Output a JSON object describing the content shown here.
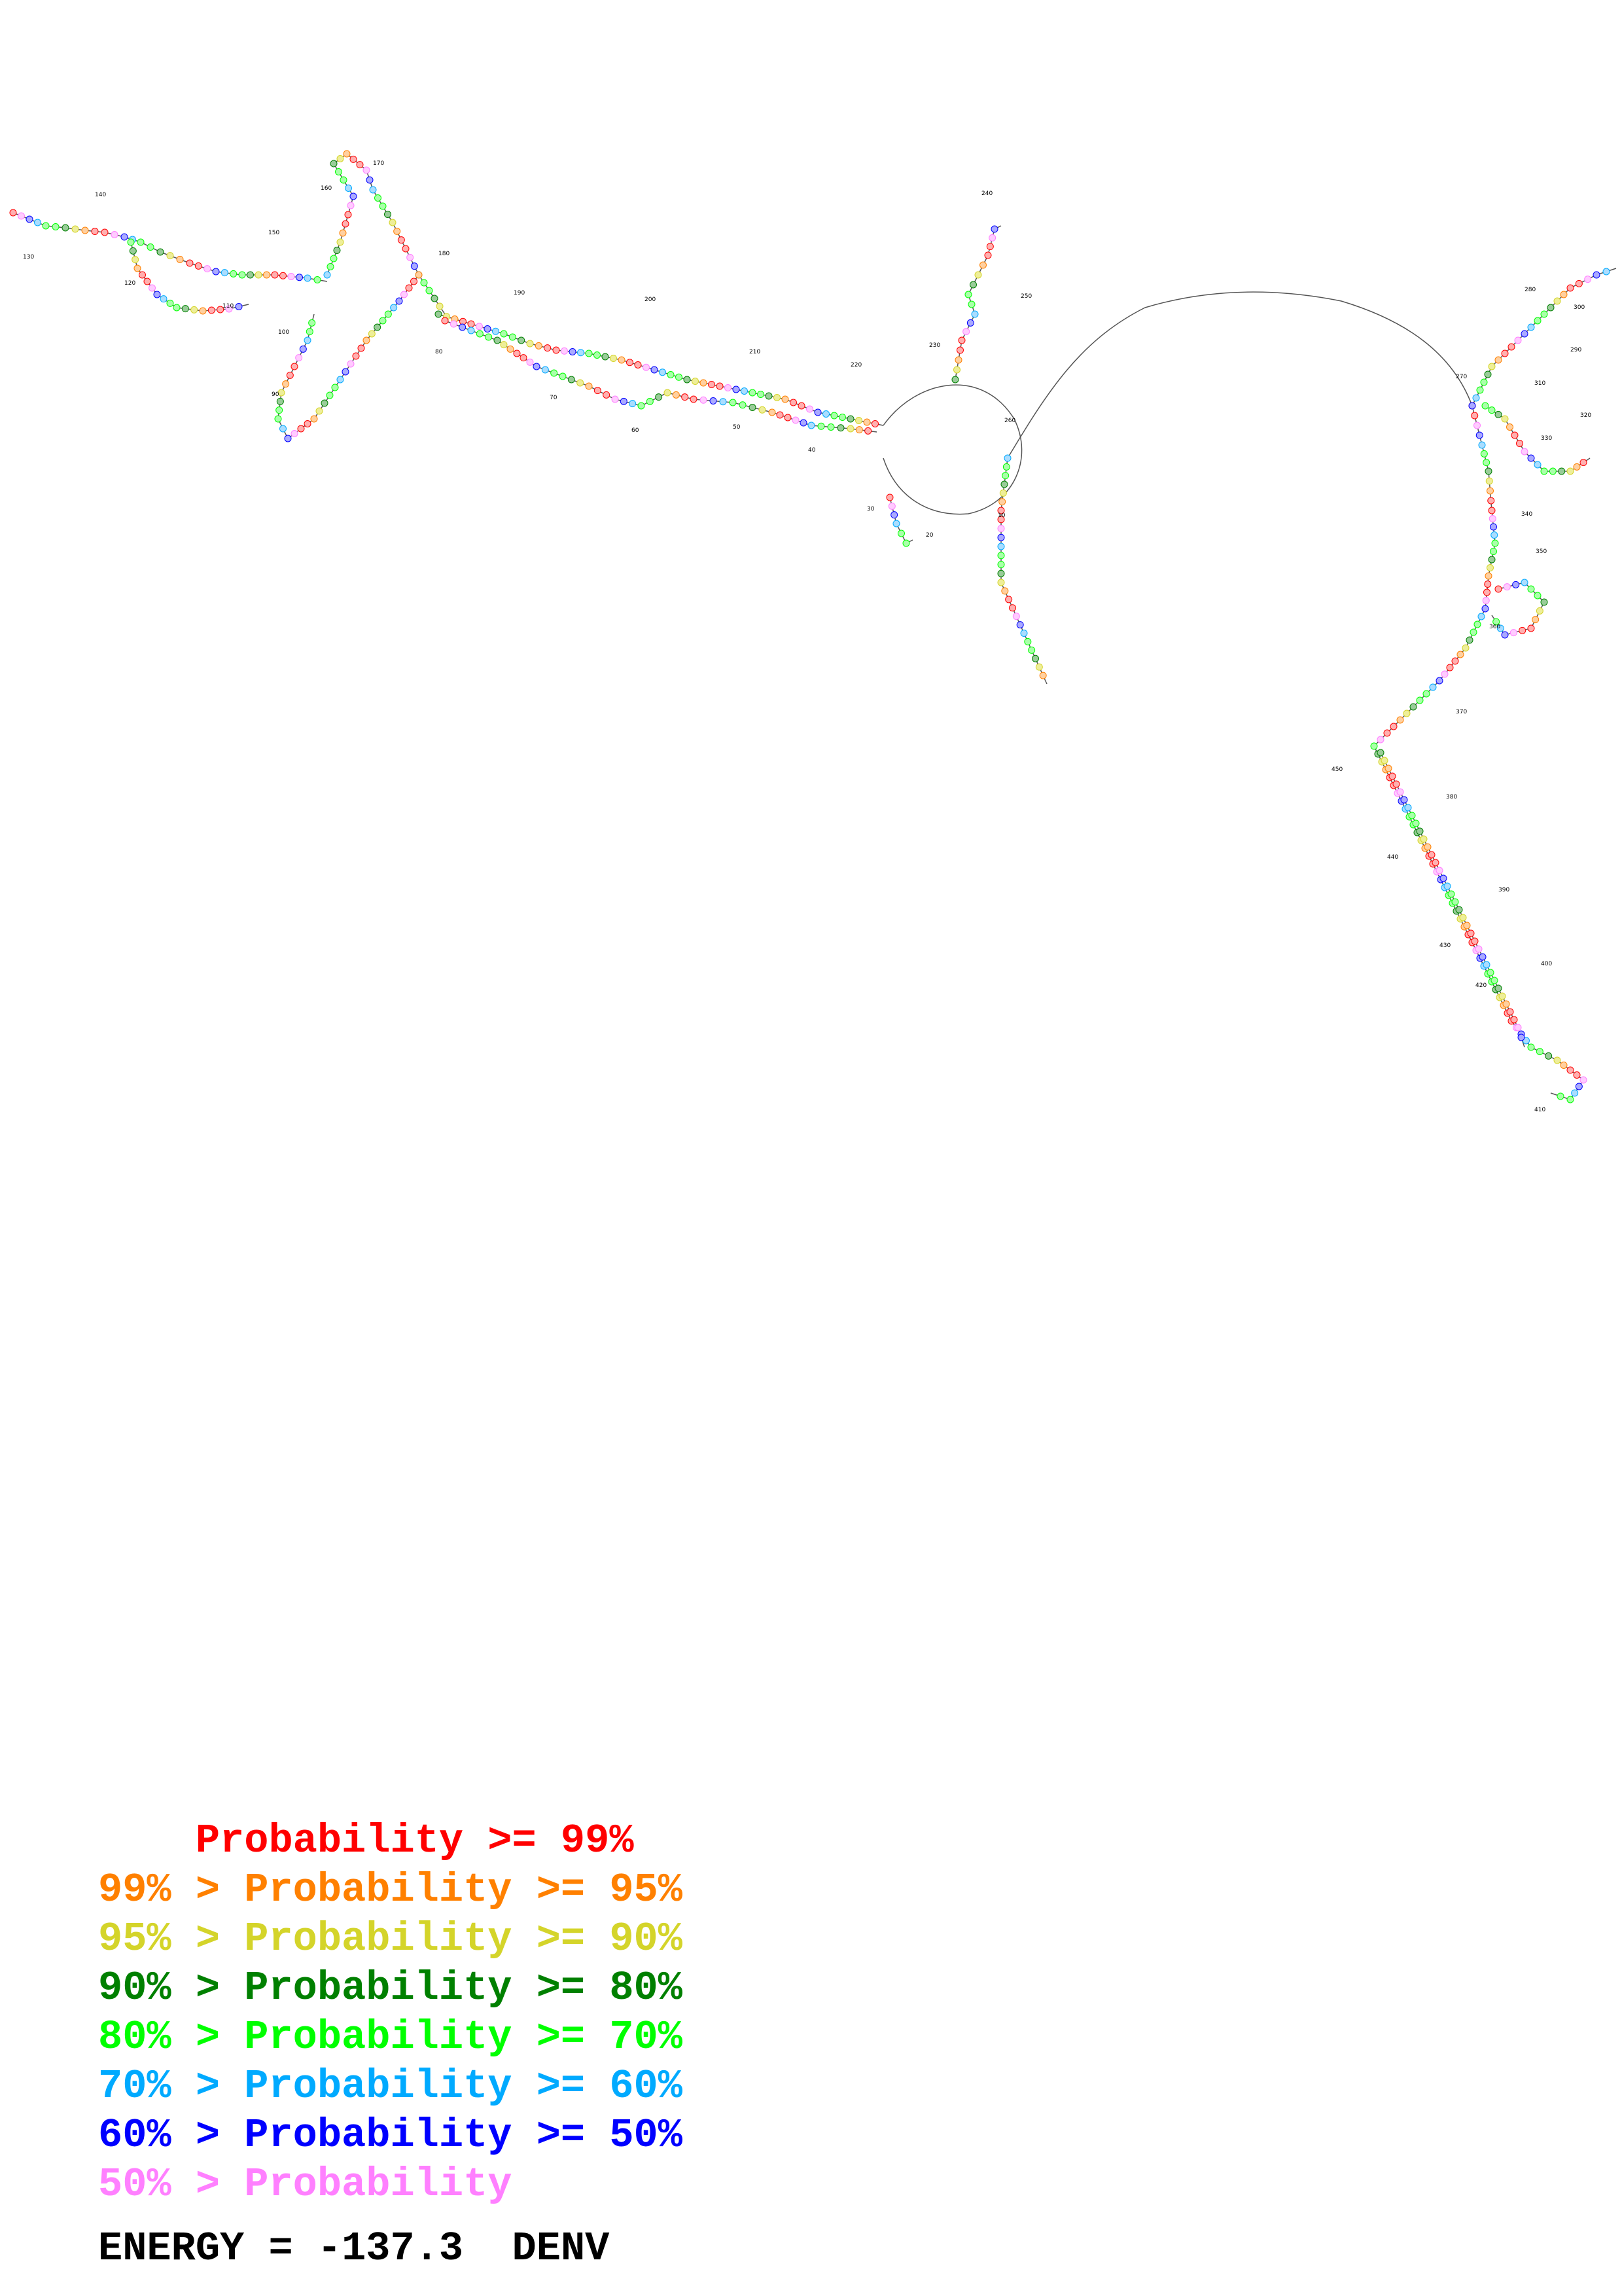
{
  "diagram": {
    "type": "rna-secondary-structure",
    "position_labels": [
      "10",
      "20",
      "30",
      "40",
      "50",
      "60",
      "70",
      "80",
      "90",
      "100",
      "110",
      "120",
      "130",
      "140",
      "150",
      "160",
      "170",
      "180",
      "190",
      "200",
      "210",
      "220",
      "230",
      "240",
      "250",
      "260",
      "270",
      "280",
      "290",
      "300",
      "310",
      "320",
      "330",
      "340",
      "350",
      "360",
      "370",
      "380",
      "390",
      "400",
      "410",
      "420",
      "430",
      "440",
      "450"
    ]
  },
  "legend": {
    "items": [
      {
        "prefix": "    ",
        "text": "Probability >= 99%",
        "color": "#ff0000"
      },
      {
        "prefix": "99% > ",
        "text": "Probability >= 95%",
        "color": "#ff8000"
      },
      {
        "prefix": "95% > ",
        "text": "Probability >= 90%",
        "color": "#d4d42a"
      },
      {
        "prefix": "90% > ",
        "text": "Probability >= 80%",
        "color": "#008000"
      },
      {
        "prefix": "80% > ",
        "text": "Probability >= 70%",
        "color": "#00ff00"
      },
      {
        "prefix": "70% > ",
        "text": "Probability >= 60%",
        "color": "#00aaff"
      },
      {
        "prefix": "60% > ",
        "text": "Probability >= 50%",
        "color": "#0000ff"
      },
      {
        "prefix": "50% > ",
        "text": "Probability",
        "color": "#ff80ff"
      }
    ]
  },
  "energy": {
    "label": "ENERGY = ",
    "value": "-137.3",
    "name": "DENV"
  }
}
